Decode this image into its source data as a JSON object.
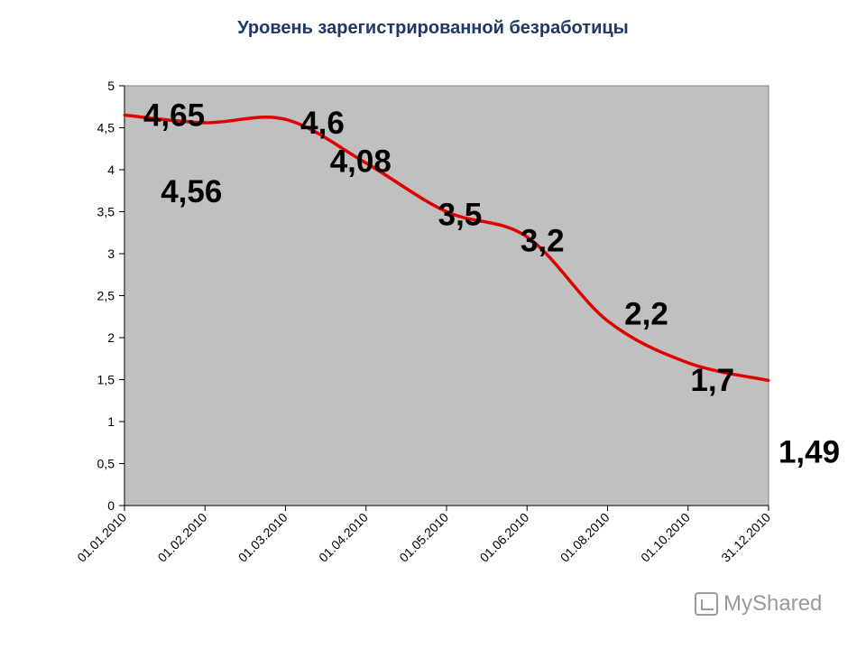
{
  "chart_data": {
    "type": "line",
    "title": "Уровень зарегистрированной безработицы",
    "xlabel": "",
    "ylabel": "",
    "ylim": [
      0,
      5
    ],
    "yticks": [
      "0",
      "0,5",
      "1",
      "1,5",
      "2",
      "2,5",
      "3",
      "3,5",
      "4",
      "4,5",
      "5"
    ],
    "categories": [
      "01.01.2010",
      "01.02.2010",
      "01.03.2010",
      "01.04.2010",
      "01.05.2010",
      "01.06.2010",
      "01.08.2010",
      "01.10.2010",
      "31.12.2010"
    ],
    "values": [
      4.65,
      4.56,
      4.6,
      4.08,
      3.5,
      3.2,
      2.2,
      1.7,
      1.49
    ],
    "data_labels": [
      "4,65",
      "4,56",
      "4,6",
      "4,08",
      "3,5",
      "3,2",
      "2,2",
      "1,7",
      "1,49"
    ],
    "grid": false,
    "plot_background": "#c0c0c0",
    "line_color": "#e00000"
  },
  "watermark": {
    "text": "MyShared",
    "icon": "myshared-logo-icon"
  }
}
